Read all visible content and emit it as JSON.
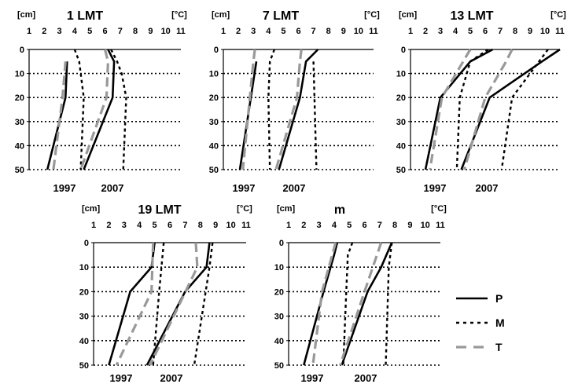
{
  "chart_data": [
    {
      "type": "line",
      "title": "1 LMT",
      "ylabel": "[cm]",
      "xlabel": "[°C]",
      "xlim": [
        1,
        11
      ],
      "ylim": [
        50,
        0
      ],
      "x_ticks": [
        "1",
        "2",
        "3",
        "4",
        "5",
        "6",
        "7",
        "8",
        "9",
        "10",
        "11"
      ],
      "y_ticks": [
        "0",
        "10",
        "20",
        "30",
        "40",
        "50"
      ],
      "grid": "horizontal dotted",
      "annotations": [
        "1997",
        "2007"
      ],
      "series": [
        {
          "name": "P",
          "group": "1997",
          "depth": [
            5,
            20,
            50
          ],
          "temp": [
            3.5,
            3.4,
            2.2
          ]
        },
        {
          "name": "M",
          "group": "1997",
          "depth": [
            0,
            5,
            20,
            50
          ],
          "temp": [
            4.0,
            4.3,
            4.6,
            4.4
          ]
        },
        {
          "name": "T",
          "group": "1997",
          "depth": [
            5,
            20,
            50
          ],
          "temp": [
            3.4,
            3.2,
            2.6
          ]
        },
        {
          "name": "P",
          "group": "2007",
          "depth": [
            0,
            5,
            20,
            50
          ],
          "temp": [
            6.2,
            6.6,
            6.5,
            4.6
          ]
        },
        {
          "name": "M",
          "group": "2007",
          "depth": [
            0,
            5,
            10,
            20,
            50
          ],
          "temp": [
            6.4,
            6.8,
            7.1,
            7.4,
            7.2
          ]
        },
        {
          "name": "T",
          "group": "2007",
          "depth": [
            0,
            5,
            20,
            50
          ],
          "temp": [
            6.0,
            6.2,
            6.1,
            4.4
          ]
        }
      ]
    },
    {
      "type": "line",
      "title": "7 LMT",
      "ylabel": "[cm]",
      "xlabel": "[°C]",
      "xlim": [
        1,
        11
      ],
      "ylim": [
        50,
        0
      ],
      "x_ticks": [
        "1",
        "2",
        "3",
        "4",
        "5",
        "6",
        "7",
        "8",
        "9",
        "10",
        "11"
      ],
      "y_ticks": [
        "0",
        "10",
        "20",
        "30",
        "40",
        "50"
      ],
      "grid": "horizontal dotted",
      "annotations": [
        "1997",
        "2007"
      ],
      "series": [
        {
          "name": "P",
          "group": "1997",
          "depth": [
            5,
            50
          ],
          "temp": [
            3.2,
            2.1
          ]
        },
        {
          "name": "M",
          "group": "1997",
          "depth": [
            0,
            5,
            20,
            50
          ],
          "temp": [
            4.4,
            4.1,
            4.0,
            4.1
          ]
        },
        {
          "name": "T",
          "group": "1997",
          "depth": [
            0,
            5,
            50
          ],
          "temp": [
            3.1,
            3.0,
            2.3
          ]
        },
        {
          "name": "P",
          "group": "2007",
          "depth": [
            0,
            5,
            20,
            50
          ],
          "temp": [
            7.3,
            6.5,
            6.1,
            4.7
          ]
        },
        {
          "name": "M",
          "group": "2007",
          "depth": [
            5,
            50
          ],
          "temp": [
            7.0,
            7.2
          ]
        },
        {
          "name": "T",
          "group": "2007",
          "depth": [
            0,
            5,
            20,
            50
          ],
          "temp": [
            6.2,
            6.1,
            5.9,
            4.5
          ]
        }
      ]
    },
    {
      "type": "line",
      "title": "13 LMT",
      "ylabel": "[cm]",
      "xlabel": "[°C]",
      "xlim": [
        1,
        11
      ],
      "ylim": [
        50,
        0
      ],
      "x_ticks": [
        "1",
        "2",
        "3",
        "4",
        "5",
        "6",
        "7",
        "8",
        "9",
        "10",
        "11"
      ],
      "y_ticks": [
        "0",
        "10",
        "20",
        "30",
        "40",
        "50"
      ],
      "grid": "horizontal dotted",
      "annotations": [
        "1997",
        "2007"
      ],
      "series": [
        {
          "name": "P",
          "group": "1997",
          "depth": [
            0,
            5,
            20,
            50
          ],
          "temp": [
            6.5,
            5.0,
            3.0,
            2.0
          ]
        },
        {
          "name": "M",
          "group": "1997",
          "depth": [
            0,
            5,
            20,
            50
          ],
          "temp": [
            6.2,
            5.0,
            4.3,
            4.1
          ]
        },
        {
          "name": "T",
          "group": "1997",
          "depth": [
            0,
            20,
            50
          ],
          "temp": [
            5.0,
            3.1,
            2.3
          ]
        },
        {
          "name": "P",
          "group": "2007",
          "depth": [
            0,
            5,
            20,
            50
          ],
          "temp": [
            11.0,
            9.8,
            6.3,
            4.4
          ]
        },
        {
          "name": "M",
          "group": "2007",
          "depth": [
            0,
            20,
            50
          ],
          "temp": [
            10.2,
            7.8,
            7.1
          ]
        },
        {
          "name": "T",
          "group": "2007",
          "depth": [
            0,
            5,
            20,
            50
          ],
          "temp": [
            7.8,
            7.4,
            6.0,
            4.6
          ]
        }
      ]
    },
    {
      "type": "line",
      "title": "19 LMT",
      "ylabel": "[cm]",
      "xlabel": "[°C]",
      "xlim": [
        1,
        11
      ],
      "ylim": [
        50,
        0
      ],
      "x_ticks": [
        "1",
        "2",
        "3",
        "4",
        "5",
        "6",
        "7",
        "8",
        "9",
        "10",
        "11"
      ],
      "y_ticks": [
        "0",
        "10",
        "20",
        "30",
        "40",
        "50"
      ],
      "grid": "horizontal dotted",
      "annotations": [
        "1997",
        "2007"
      ],
      "series": [
        {
          "name": "P",
          "group": "1997",
          "depth": [
            0,
            10,
            20,
            50
          ],
          "temp": [
            5.0,
            4.8,
            3.4,
            2.0
          ]
        },
        {
          "name": "M",
          "group": "1997",
          "depth": [
            0,
            20,
            50
          ],
          "temp": [
            5.6,
            5.3,
            4.9
          ]
        },
        {
          "name": "T",
          "group": "1997",
          "depth": [
            0,
            20,
            50
          ],
          "temp": [
            4.9,
            4.8,
            2.5
          ]
        },
        {
          "name": "P",
          "group": "2007",
          "depth": [
            0,
            10,
            20,
            50
          ],
          "temp": [
            8.6,
            8.4,
            7.0,
            4.5
          ]
        },
        {
          "name": "M",
          "group": "2007",
          "depth": [
            0,
            10,
            50
          ],
          "temp": [
            8.8,
            8.6,
            7.6
          ]
        },
        {
          "name": "T",
          "group": "2007",
          "depth": [
            0,
            10,
            50
          ],
          "temp": [
            7.7,
            7.8,
            4.7
          ]
        }
      ]
    },
    {
      "type": "line",
      "title": "m",
      "ylabel": "[cm]",
      "xlabel": "[°C]",
      "xlim": [
        1,
        11
      ],
      "ylim": [
        50,
        0
      ],
      "x_ticks": [
        "1",
        "2",
        "3",
        "4",
        "5",
        "6",
        "7",
        "8",
        "9",
        "10",
        "11"
      ],
      "y_ticks": [
        "0",
        "10",
        "20",
        "30",
        "40",
        "50"
      ],
      "grid": "horizontal dotted",
      "annotations": [
        "1997",
        "2007"
      ],
      "series": [
        {
          "name": "P",
          "group": "1997",
          "depth": [
            0,
            5,
            20,
            50
          ],
          "temp": [
            4.2,
            4.0,
            3.3,
            2.0
          ]
        },
        {
          "name": "M",
          "group": "1997",
          "depth": [
            0,
            5,
            20,
            50
          ],
          "temp": [
            5.2,
            4.9,
            4.8,
            4.6
          ]
        },
        {
          "name": "T",
          "group": "1997",
          "depth": [
            0,
            20,
            50
          ],
          "temp": [
            4.1,
            3.2,
            2.6
          ]
        },
        {
          "name": "P",
          "group": "2007",
          "depth": [
            0,
            10,
            20,
            50
          ],
          "temp": [
            7.8,
            7.1,
            6.2,
            4.5
          ]
        },
        {
          "name": "M",
          "group": "2007",
          "depth": [
            0,
            10,
            50
          ],
          "temp": [
            7.8,
            7.6,
            7.4
          ]
        },
        {
          "name": "T",
          "group": "2007",
          "depth": [
            0,
            20,
            50
          ],
          "temp": [
            7.1,
            6.0,
            4.4
          ]
        }
      ]
    }
  ],
  "legend": {
    "placement": "bottom-right",
    "items": [
      {
        "label": "P",
        "style": "solid",
        "color": "#000000"
      },
      {
        "label": "M",
        "style": "dotted",
        "color": "#000000"
      },
      {
        "label": "T",
        "style": "dashed",
        "color": "#999999"
      }
    ]
  },
  "colors": {
    "P": "#000000",
    "M": "#000000",
    "T": "#999999"
  }
}
